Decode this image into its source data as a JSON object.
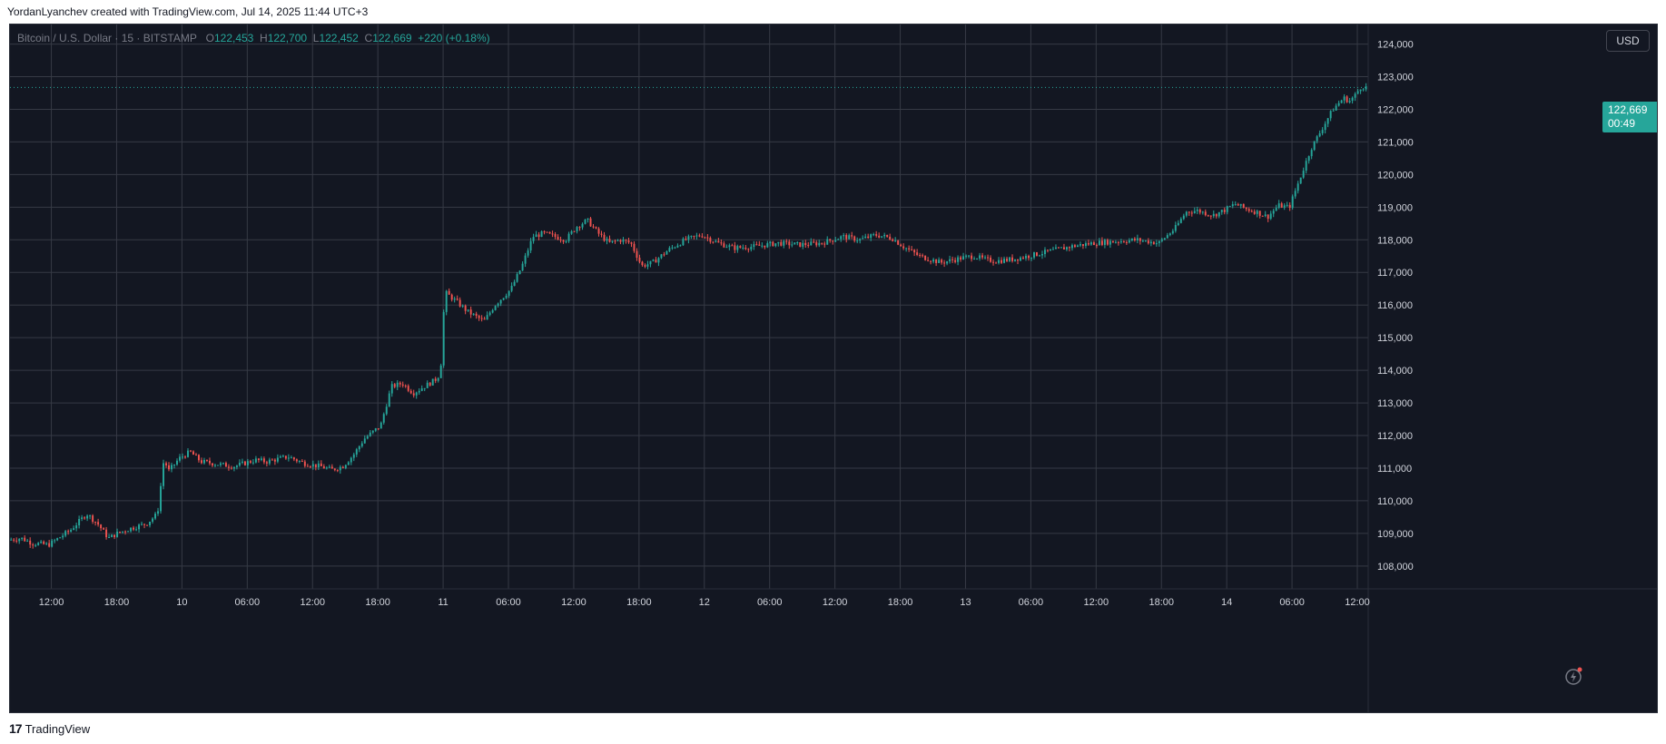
{
  "header": {
    "text": "YordanLyanchev created with TradingView.com, Jul 14, 2025 11:44 UTC+3"
  },
  "legend": {
    "symbol": "Bitcoin / U.S. Dollar · 15 · BITSTAMP",
    "o_label": "O",
    "open": "122,453",
    "h_label": "H",
    "high": "122,700",
    "l_label": "L",
    "low": "122,452",
    "c_label": "C",
    "close": "122,669",
    "change": "+220 (+0.18%)"
  },
  "currency": "USD",
  "price_badge": {
    "price": "122,669",
    "countdown": "00:49"
  },
  "footer": {
    "logo": "17",
    "brand": "TradingView"
  },
  "colors": {
    "background": "#131722",
    "grid": "#363a45",
    "up": "#26a69a",
    "down": "#ef5350",
    "axis_text": "#d1d4dc"
  },
  "icons": {
    "replay": "replay-lightning-icon",
    "logo": "tradingview-logo-icon"
  },
  "chart_data": {
    "type": "candlestick",
    "title": "Bitcoin / U.S. Dollar · 15 · BITSTAMP",
    "ylim": [
      107300,
      124600
    ],
    "y_ticks": [
      108000,
      109000,
      110000,
      111000,
      112000,
      113000,
      114000,
      115000,
      116000,
      117000,
      118000,
      119000,
      120000,
      121000,
      122000,
      123000,
      124000
    ],
    "y_tick_labels": [
      "108,000",
      "109,000",
      "110,000",
      "111,000",
      "112,000",
      "113,000",
      "114,000",
      "115,000",
      "116,000",
      "117,000",
      "118,000",
      "119,000",
      "120,000",
      "121,000",
      "122,000",
      "123,000",
      "124,000"
    ],
    "x_tick_labels": [
      "12:00",
      "18:00",
      "10",
      "06:00",
      "12:00",
      "18:00",
      "11",
      "06:00",
      "12:00",
      "18:00",
      "12",
      "06:00",
      "12:00",
      "18:00",
      "13",
      "06:00",
      "12:00",
      "18:00",
      "14",
      "06:00",
      "12:00"
    ],
    "x_tick_hours": [
      12,
      18,
      24,
      30,
      36,
      42,
      48,
      54,
      60,
      66,
      72,
      78,
      84,
      90,
      96,
      102,
      108,
      114,
      120,
      126,
      132
    ],
    "x_range_hours": [
      8.2,
      133.0
    ],
    "interval": "15",
    "last_price": 122669,
    "keypoints_hours": [
      8.3,
      9.5,
      10.5,
      12,
      14,
      15.5,
      16.5,
      17.5,
      18.3,
      19.5,
      21,
      22,
      22.6,
      23,
      24,
      25,
      26,
      28,
      29,
      30,
      31,
      32,
      34,
      35.5,
      37,
      38,
      39,
      40,
      41,
      42.5,
      43.5,
      44.5,
      45.5,
      46.5,
      47.5,
      48,
      48.4,
      49.5,
      50.5,
      52,
      53,
      54.5,
      55.5,
      56.5,
      57.5,
      58.5,
      59.5,
      60.5,
      61.5,
      62.5,
      63.5,
      64.5,
      65.5,
      66.5,
      67.5,
      69,
      70.5,
      72,
      73.5,
      75,
      77,
      79,
      81,
      83,
      85,
      86.5,
      88,
      89.5,
      90.5,
      92,
      94,
      96,
      97,
      98,
      99,
      100.5,
      102,
      104,
      106,
      108,
      110,
      112,
      114,
      115.5,
      116.5,
      117.5,
      119,
      120,
      121,
      122,
      123,
      124,
      125,
      126,
      127,
      128,
      129,
      130,
      131,
      131.5,
      132,
      132.5,
      133
    ],
    "keypoints_price": [
      108800,
      108850,
      108700,
      108650,
      109100,
      109600,
      109300,
      108850,
      109000,
      109150,
      109300,
      109600,
      111300,
      110900,
      111300,
      111500,
      111200,
      111100,
      111050,
      111150,
      111250,
      111200,
      111350,
      111150,
      111050,
      110950,
      111050,
      111400,
      111900,
      112300,
      113500,
      113600,
      113300,
      113500,
      113700,
      113900,
      116400,
      116100,
      115800,
      115500,
      116000,
      116500,
      117200,
      118100,
      118200,
      118100,
      118000,
      118400,
      118600,
      118200,
      117900,
      118000,
      117900,
      117200,
      117300,
      117700,
      118000,
      118150,
      117900,
      117750,
      117800,
      117900,
      117850,
      117900,
      118100,
      118000,
      118150,
      118050,
      117800,
      117500,
      117300,
      117450,
      117500,
      117400,
      117350,
      117400,
      117500,
      117650,
      117800,
      117900,
      117950,
      118000,
      117900,
      118350,
      118850,
      118900,
      118750,
      118900,
      119100,
      118950,
      118850,
      118700,
      119050,
      119000,
      119900,
      120800,
      121400,
      122000,
      122350,
      122250,
      122400,
      122669,
      122700,
      122669
    ]
  }
}
